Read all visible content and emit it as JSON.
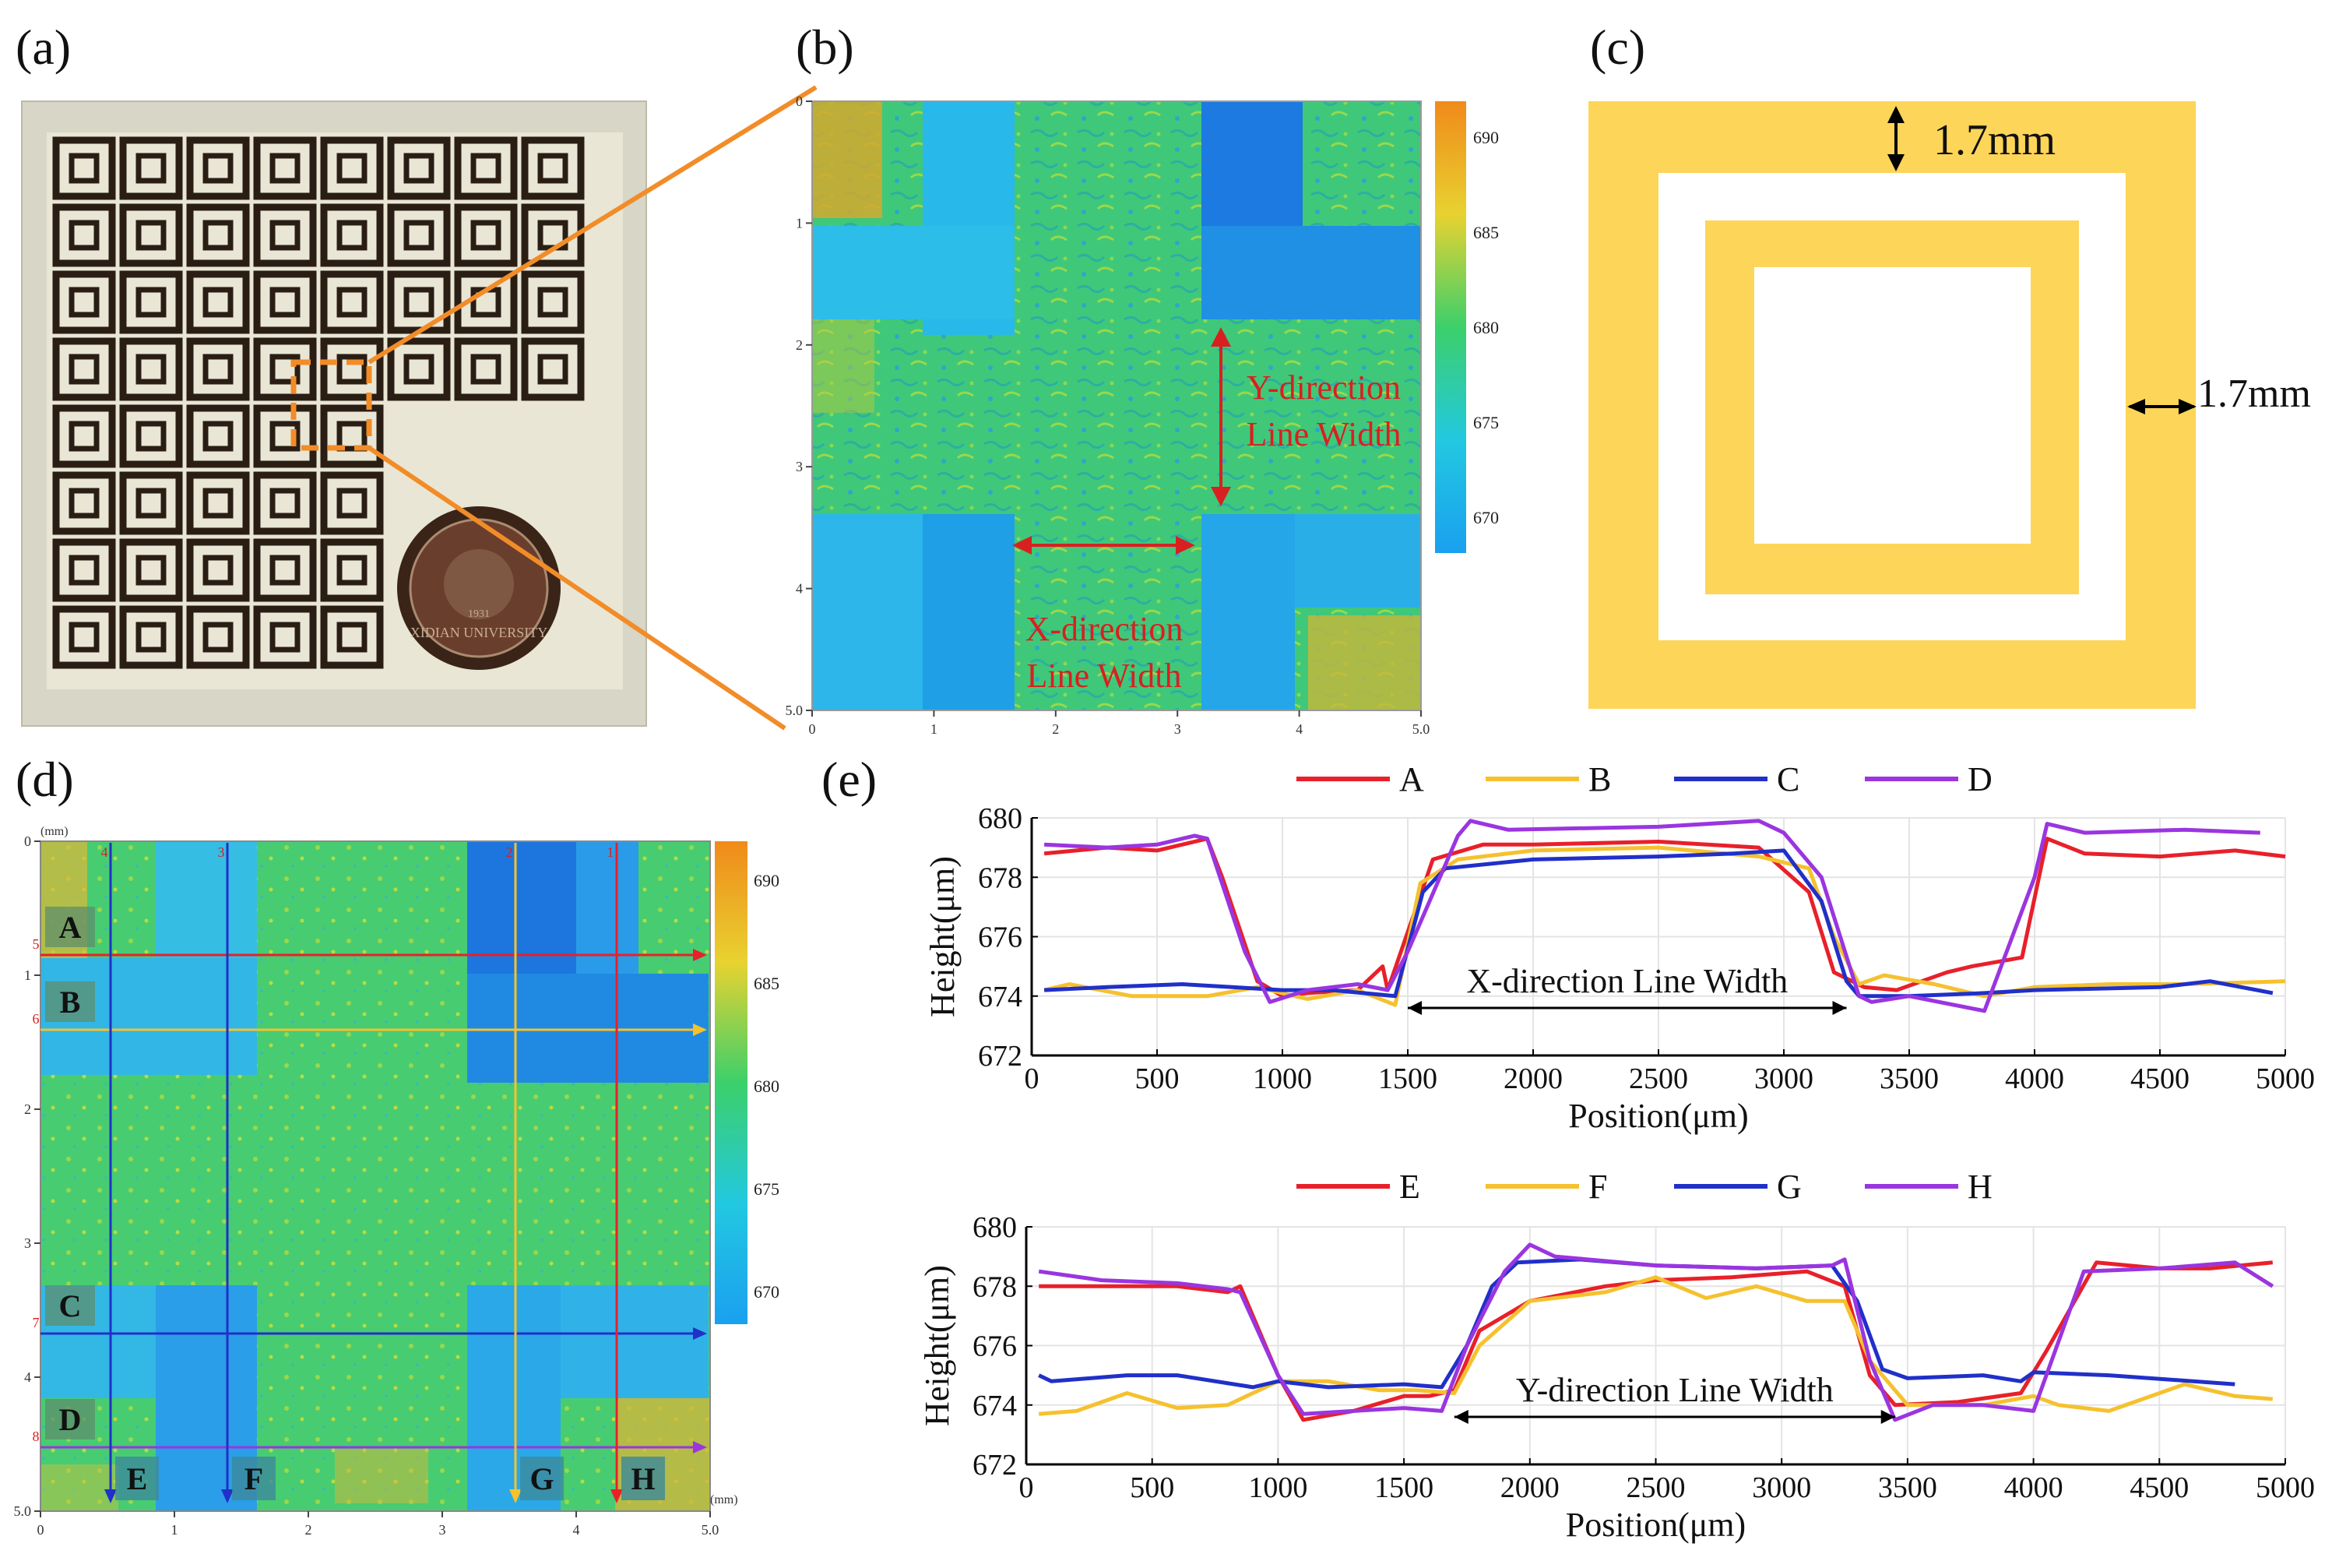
{
  "figure": {
    "panel_labels": [
      "(a)",
      "(b)",
      "(c)",
      "(d)",
      "(e)"
    ],
    "photo": {
      "seal_text": "XIDIAN UNIVERSITY",
      "seal_year": "1931"
    },
    "colorbar_ticks": [
      "690",
      "685",
      "680",
      "675",
      "670"
    ],
    "panel_b": {
      "y_ticks": [
        "0",
        "1",
        "2",
        "3",
        "4",
        "5.0"
      ],
      "x_ticks": [
        "0",
        "1",
        "2",
        "3",
        "4",
        "5.0"
      ],
      "y_label_1": "Y-direction",
      "y_label_2": "Line Width",
      "x_label_1": "X-direction",
      "x_label_2": "Line Width"
    },
    "panel_c": {
      "dim_top": "1.7mm",
      "dim_right": "1.7mm"
    },
    "panel_d": {
      "unit": "(mm)",
      "x_ticks": [
        "0",
        "1",
        "2",
        "3",
        "4",
        "5.0"
      ],
      "y_ticks": [
        "0",
        "1",
        "2",
        "3",
        "4",
        "5.0"
      ],
      "row_labels": [
        "A",
        "B",
        "C",
        "D"
      ],
      "col_labels": [
        "E",
        "F",
        "G",
        "H"
      ],
      "row_nums": [
        "5",
        "6",
        "7",
        "8"
      ],
      "col_nums": [
        "4",
        "3",
        "2",
        "1"
      ],
      "colors": {
        "A": "#e8202a",
        "B": "#f5c12e",
        "C": "#2030c8",
        "D": "#9a35e0",
        "E": "#2030c8",
        "F": "#2030c8",
        "G": "#f5c12e",
        "H": "#e8202a"
      }
    }
  },
  "chart_data": [
    {
      "type": "line",
      "title": "",
      "xlabel": "Position(μm)",
      "ylabel": "Height(μm)",
      "xlim": [
        0,
        5000
      ],
      "ylim": [
        672,
        680
      ],
      "x_ticks": [
        0,
        500,
        1000,
        1500,
        2000,
        2500,
        3000,
        3500,
        4000,
        4500,
        5000
      ],
      "y_ticks": [
        672,
        674,
        676,
        678,
        680
      ],
      "annotation": "X-direction Line Width",
      "annotation_range": [
        1500,
        3250
      ],
      "series": [
        {
          "name": "A",
          "color": "#e8202a",
          "x": [
            50,
            300,
            500,
            700,
            760,
            900,
            1000,
            1100,
            1300,
            1400,
            1420,
            1600,
            1800,
            2000,
            2500,
            2900,
            3100,
            3200,
            3320,
            3450,
            3650,
            3750,
            3950,
            4050,
            4200,
            4500,
            4800,
            5000
          ],
          "y": [
            678.8,
            679.0,
            678.9,
            679.3,
            678.0,
            674.5,
            674.0,
            674.1,
            674.2,
            675.0,
            674.2,
            678.6,
            679.1,
            679.1,
            679.2,
            679.0,
            677.5,
            674.8,
            674.3,
            674.2,
            674.8,
            675.0,
            675.3,
            679.3,
            678.8,
            678.7,
            678.9,
            678.7
          ]
        },
        {
          "name": "B",
          "color": "#f5c12e",
          "x": [
            50,
            150,
            400,
            700,
            900,
            1100,
            1300,
            1450,
            1550,
            1700,
            2000,
            2500,
            2900,
            3100,
            3200,
            3300,
            3400,
            3600,
            3800,
            4000,
            4300,
            4600,
            5000
          ],
          "y": [
            674.2,
            674.4,
            674.0,
            674.0,
            674.3,
            673.9,
            674.2,
            673.7,
            677.8,
            678.6,
            678.9,
            679.0,
            678.7,
            678.3,
            676.0,
            674.4,
            674.7,
            674.4,
            674.0,
            674.3,
            674.4,
            674.4,
            674.5
          ]
        },
        {
          "name": "C",
          "color": "#2030c8",
          "x": [
            50,
            300,
            600,
            800,
            1000,
            1200,
            1450,
            1560,
            1650,
            2000,
            2500,
            2800,
            3000,
            3150,
            3250,
            3300,
            3500,
            3800,
            4000,
            4500,
            4700,
            4950
          ],
          "y": [
            674.2,
            674.3,
            674.4,
            674.3,
            674.2,
            674.2,
            674.0,
            677.5,
            678.3,
            678.6,
            678.7,
            678.8,
            678.9,
            677.2,
            674.5,
            674.0,
            674.0,
            674.1,
            674.2,
            674.3,
            674.5,
            674.1
          ]
        },
        {
          "name": "D",
          "color": "#9a35e0",
          "x": [
            50,
            300,
            500,
            650,
            700,
            850,
            950,
            1100,
            1300,
            1420,
            1500,
            1700,
            1750,
            1900,
            2500,
            2900,
            3000,
            3150,
            3300,
            3350,
            3500,
            3800,
            4000,
            4050,
            4200,
            4600,
            4900
          ],
          "y": [
            679.1,
            679.0,
            679.1,
            679.4,
            679.3,
            675.5,
            673.8,
            674.2,
            674.4,
            674.2,
            675.5,
            679.4,
            679.9,
            679.6,
            679.7,
            679.9,
            679.5,
            678.0,
            674.0,
            673.8,
            674.0,
            673.5,
            678.0,
            679.8,
            679.5,
            679.6,
            679.5
          ]
        }
      ]
    },
    {
      "type": "line",
      "title": "",
      "xlabel": "Position(μm)",
      "ylabel": "Height(μm)",
      "xlim": [
        0,
        5000
      ],
      "ylim": [
        672,
        680
      ],
      "x_ticks": [
        0,
        500,
        1000,
        1500,
        2000,
        2500,
        3000,
        3500,
        4000,
        4500,
        5000
      ],
      "y_ticks": [
        672,
        674,
        676,
        678,
        680
      ],
      "annotation": "Y-direction Line Width",
      "annotation_range": [
        1700,
        3450
      ],
      "series": [
        {
          "name": "E",
          "color": "#e8202a",
          "x": [
            50,
            300,
            600,
            800,
            850,
            1000,
            1100,
            1300,
            1500,
            1600,
            1700,
            1800,
            2000,
            2300,
            2500,
            2800,
            3100,
            3250,
            3350,
            3450,
            3700,
            3950,
            4050,
            4250,
            4500,
            4700,
            4950
          ],
          "y": [
            678.0,
            678.0,
            678.0,
            677.8,
            678.0,
            675.0,
            673.5,
            673.8,
            674.3,
            674.3,
            674.5,
            676.5,
            677.5,
            678.0,
            678.2,
            678.3,
            678.5,
            678.0,
            675.0,
            674.0,
            674.1,
            674.4,
            675.8,
            678.8,
            678.6,
            678.6,
            678.8
          ]
        },
        {
          "name": "F",
          "color": "#f5c12e",
          "x": [
            50,
            200,
            400,
            600,
            800,
            1000,
            1200,
            1400,
            1550,
            1700,
            1800,
            2000,
            2300,
            2500,
            2700,
            2900,
            3100,
            3250,
            3350,
            3500,
            3800,
            4000,
            4100,
            4300,
            4600,
            4800,
            4950
          ],
          "y": [
            673.7,
            673.8,
            674.4,
            673.9,
            674.0,
            674.8,
            674.8,
            674.5,
            674.5,
            674.4,
            676.0,
            677.5,
            677.8,
            678.3,
            677.6,
            678.0,
            677.5,
            677.5,
            675.5,
            674.0,
            674.0,
            674.3,
            674.0,
            673.8,
            674.7,
            674.3,
            674.2
          ]
        },
        {
          "name": "G",
          "color": "#2030c8",
          "x": [
            50,
            100,
            400,
            600,
            900,
            1000,
            1200,
            1500,
            1650,
            1750,
            1850,
            1950,
            2200,
            2500,
            2900,
            3200,
            3300,
            3400,
            3500,
            3800,
            3950,
            4000,
            4300,
            4800
          ],
          "y": [
            675.0,
            674.8,
            675.0,
            675.0,
            674.6,
            674.8,
            674.6,
            674.7,
            674.6,
            676.0,
            678.0,
            678.8,
            678.9,
            678.7,
            678.6,
            678.7,
            677.5,
            675.2,
            674.9,
            675.0,
            674.8,
            675.1,
            675.0,
            674.7
          ]
        },
        {
          "name": "H",
          "color": "#9a35e0",
          "x": [
            50,
            300,
            600,
            800,
            850,
            1000,
            1100,
            1300,
            1500,
            1650,
            1750,
            1900,
            2000,
            2100,
            2500,
            2900,
            3200,
            3250,
            3350,
            3450,
            3600,
            3800,
            4000,
            4200,
            4500,
            4800,
            4950
          ],
          "y": [
            678.5,
            678.2,
            678.1,
            677.9,
            677.8,
            675.0,
            673.7,
            673.8,
            673.9,
            673.8,
            676.0,
            678.5,
            679.4,
            679.0,
            678.7,
            678.6,
            678.7,
            678.9,
            675.5,
            673.5,
            674.0,
            674.0,
            673.8,
            678.5,
            678.6,
            678.8,
            678.0
          ]
        }
      ]
    }
  ]
}
